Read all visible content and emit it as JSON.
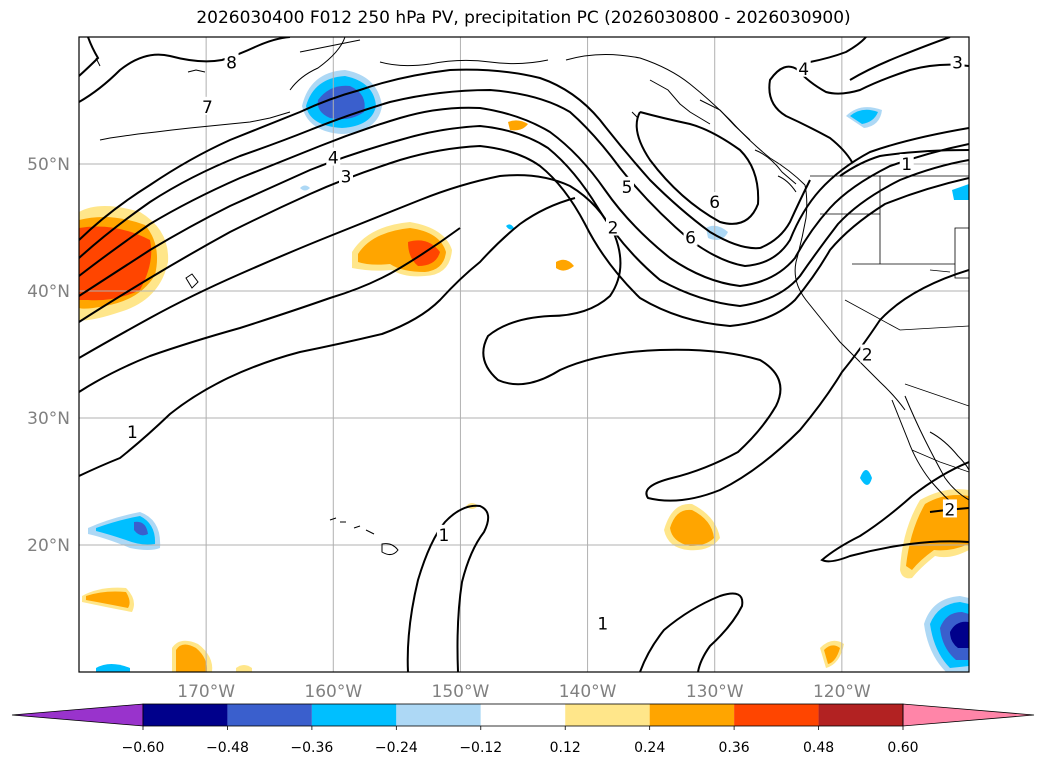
{
  "title": "2026030400 F012 250 hPa PV, precipitation PC (2026030800 - 2026030900)",
  "map": {
    "projection": "lat-lon",
    "lon_range": [
      -180,
      -110
    ],
    "lat_range": [
      10,
      60
    ],
    "gridlines": true,
    "lat_ticks": [
      {
        "lat": 50,
        "label": "50°N"
      },
      {
        "lat": 40,
        "label": "40°N"
      },
      {
        "lat": 30,
        "label": "30°N"
      },
      {
        "lat": 20,
        "label": "20°N"
      }
    ],
    "lon_ticks": [
      {
        "lon": -170,
        "label": "170°W"
      },
      {
        "lon": -160,
        "label": "160°W"
      },
      {
        "lon": -150,
        "label": "150°W"
      },
      {
        "lon": -140,
        "label": "140°W"
      },
      {
        "lon": -130,
        "label": "130°W"
      },
      {
        "lon": -120,
        "label": "120°W"
      }
    ],
    "pv_contour_labels": [
      {
        "text": "8",
        "lon": -168.0,
        "lat": 58.0
      },
      {
        "text": "7",
        "lon": -169.9,
        "lat": 54.5
      },
      {
        "text": "4",
        "lon": -160.0,
        "lat": 50.5
      },
      {
        "text": "3",
        "lon": -159.0,
        "lat": 49.0
      },
      {
        "text": "5",
        "lon": -136.9,
        "lat": 48.2
      },
      {
        "text": "2",
        "lon": -138.0,
        "lat": 45.0
      },
      {
        "text": "6",
        "lon": -130.0,
        "lat": 47.0
      },
      {
        "text": "6",
        "lon": -131.9,
        "lat": 44.2
      },
      {
        "text": "4",
        "lon": -123.0,
        "lat": 57.5
      },
      {
        "text": "3",
        "lon": -110.9,
        "lat": 58.0
      },
      {
        "text": "1",
        "lon": -114.9,
        "lat": 50.0
      },
      {
        "text": "2",
        "lon": -118.0,
        "lat": 35.0
      },
      {
        "text": "1",
        "lon": -175.8,
        "lat": 28.9
      },
      {
        "text": "1",
        "lon": -151.3,
        "lat": 20.8
      },
      {
        "text": "1",
        "lon": -138.8,
        "lat": 13.8
      },
      {
        "text": "2",
        "lon": -111.5,
        "lat": 22.8
      }
    ]
  },
  "colorbar": {
    "ticks": [
      "−0.60",
      "−0.48",
      "−0.36",
      "−0.24",
      "−0.12",
      "0.12",
      "0.24",
      "0.36",
      "0.48",
      "0.60"
    ],
    "colors": [
      "#9933cc",
      "#00008b",
      "#3a5fcd",
      "#00bfff",
      "#add8f5",
      "#ffffff",
      "#ffe68a",
      "#ffa500",
      "#ff4500",
      "#b22222",
      "#ff85a8"
    ]
  },
  "chart_data": {
    "type": "heatmap",
    "title": "2026030400 F012 250 hPa PV, precipitation PC (2026030800 - 2026030900)",
    "variables": [
      "250 hPa PV (contours)",
      "precipitation PC (shaded)"
    ],
    "xlim": [
      -180,
      -110
    ],
    "ylim": [
      10,
      60
    ],
    "contour_levels": [
      1,
      2,
      3,
      4,
      5,
      6,
      7,
      8
    ],
    "shading_levels": [
      -0.6,
      -0.48,
      -0.36,
      -0.24,
      -0.12,
      0.12,
      0.24,
      0.36,
      0.48,
      0.6
    ],
    "precip_features": [
      {
        "lon": -176.5,
        "lat": 42,
        "value": 0.48
      },
      {
        "lon": -158.5,
        "lat": 42.5,
        "value": 0.36
      },
      {
        "lon": -160,
        "lat": 54.5,
        "value": -0.48
      },
      {
        "lon": -175,
        "lat": 21,
        "value": -0.48
      },
      {
        "lon": -131.5,
        "lat": 20.5,
        "value": 0.24
      },
      {
        "lon": -112,
        "lat": 20,
        "value": 0.24
      },
      {
        "lon": -111,
        "lat": 13,
        "value": -0.6
      },
      {
        "lon": -170,
        "lat": 11,
        "value": 0.24
      },
      {
        "lon": -178,
        "lat": 16,
        "value": 0.24
      },
      {
        "lon": -120,
        "lat": 11,
        "value": 0.24
      },
      {
        "lon": -117,
        "lat": 54,
        "value": -0.24
      },
      {
        "lon": -142,
        "lat": 42,
        "value": 0.24
      }
    ]
  }
}
